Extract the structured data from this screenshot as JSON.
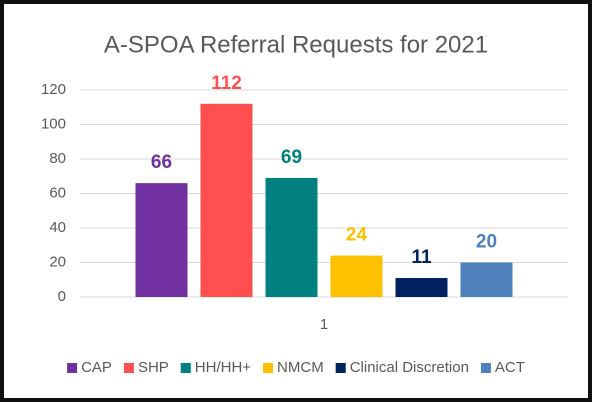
{
  "chart_data": {
    "type": "bar",
    "title": "A-SPOA Referral Requests for 2021",
    "categories": [
      "1"
    ],
    "series": [
      {
        "name": "CAP",
        "color": "#7030a0",
        "values": [
          66
        ]
      },
      {
        "name": "SHP",
        "color": "#ff5050",
        "values": [
          112
        ]
      },
      {
        "name": "HH/HH+",
        "color": "#008080",
        "values": [
          69
        ]
      },
      {
        "name": "NMCM",
        "color": "#ffc000",
        "values": [
          24
        ]
      },
      {
        "name": "Clinical Discretion",
        "color": "#002060",
        "values": [
          11
        ]
      },
      {
        "name": "ACT",
        "color": "#4f81bd",
        "values": [
          20
        ]
      }
    ],
    "ylim": [
      0,
      120
    ],
    "yticks": [
      0,
      20,
      40,
      60,
      80,
      100,
      120
    ],
    "grid": true,
    "legend": "bottom"
  }
}
